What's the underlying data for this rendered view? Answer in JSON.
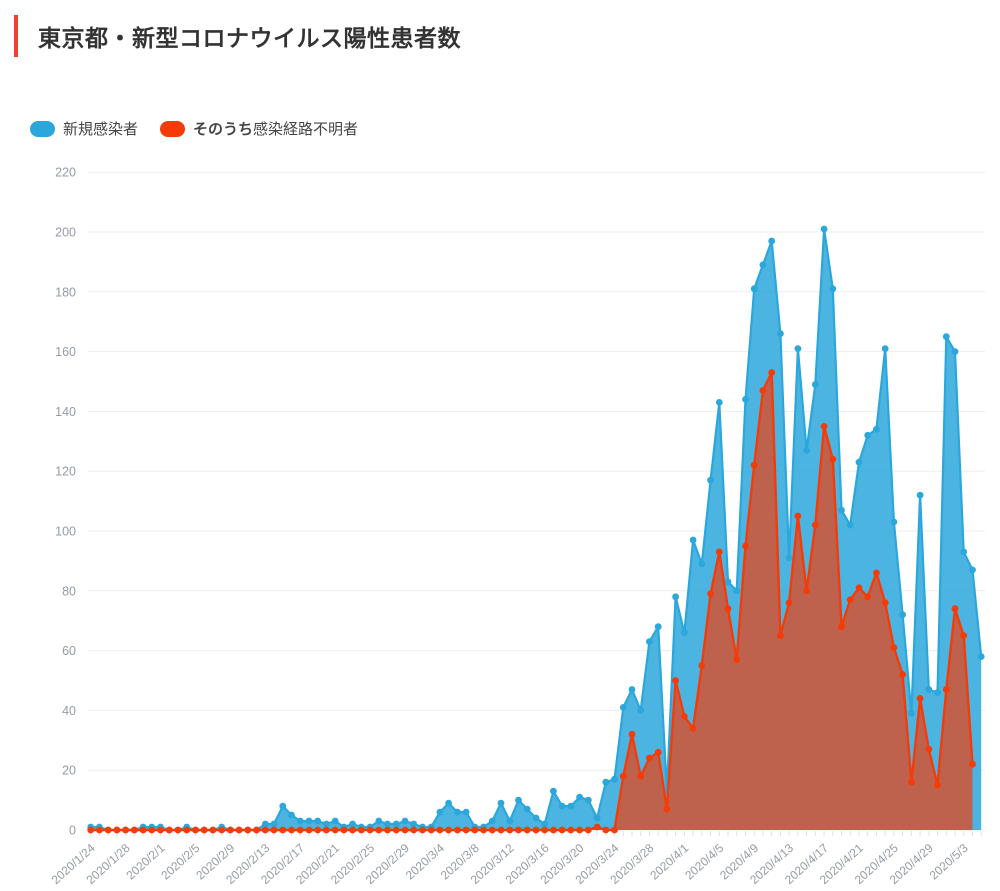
{
  "page": {
    "title": "東京都・新型コロナウイルス陽性患者数"
  },
  "legend": {
    "series1": {
      "label": "新規感染者",
      "color": "#2BA7DC"
    },
    "series2": {
      "label_bold": "そのうち",
      "label": "感染経路不明者",
      "color": "#F53B08"
    }
  },
  "colors": {
    "accent_bar": "#EF3E36",
    "grid": "#EDEDED",
    "tick_text": "#959BA6",
    "tick_mark": "#E0E0E0"
  },
  "chart_data": {
    "type": "area",
    "title": "東京都・新型コロナウイルス陽性患者数",
    "x": [
      "2020/1/24",
      "2020/1/25",
      "2020/1/26",
      "2020/1/27",
      "2020/1/28",
      "2020/1/29",
      "2020/1/30",
      "2020/1/31",
      "2020/2/1",
      "2020/2/2",
      "2020/2/3",
      "2020/2/4",
      "2020/2/5",
      "2020/2/6",
      "2020/2/7",
      "2020/2/8",
      "2020/2/9",
      "2020/2/10",
      "2020/2/11",
      "2020/2/12",
      "2020/2/13",
      "2020/2/14",
      "2020/2/15",
      "2020/2/16",
      "2020/2/17",
      "2020/2/18",
      "2020/2/19",
      "2020/2/20",
      "2020/2/21",
      "2020/2/22",
      "2020/2/23",
      "2020/2/24",
      "2020/2/25",
      "2020/2/26",
      "2020/2/27",
      "2020/2/28",
      "2020/2/29",
      "2020/3/1",
      "2020/3/2",
      "2020/3/3",
      "2020/3/4",
      "2020/3/5",
      "2020/3/6",
      "2020/3/7",
      "2020/3/8",
      "2020/3/9",
      "2020/3/10",
      "2020/3/11",
      "2020/3/12",
      "2020/3/13",
      "2020/3/14",
      "2020/3/15",
      "2020/3/16",
      "2020/3/17",
      "2020/3/18",
      "2020/3/19",
      "2020/3/20",
      "2020/3/21",
      "2020/3/22",
      "2020/3/23",
      "2020/3/24",
      "2020/3/25",
      "2020/3/26",
      "2020/3/27",
      "2020/3/28",
      "2020/3/29",
      "2020/3/30",
      "2020/3/31",
      "2020/4/1",
      "2020/4/2",
      "2020/4/3",
      "2020/4/4",
      "2020/4/5",
      "2020/4/6",
      "2020/4/7",
      "2020/4/8",
      "2020/4/9",
      "2020/4/10",
      "2020/4/11",
      "2020/4/12",
      "2020/4/13",
      "2020/4/14",
      "2020/4/15",
      "2020/4/16",
      "2020/4/17",
      "2020/4/18",
      "2020/4/19",
      "2020/4/20",
      "2020/4/21",
      "2020/4/22",
      "2020/4/23",
      "2020/4/24",
      "2020/4/25",
      "2020/4/26",
      "2020/4/27",
      "2020/4/28",
      "2020/4/29",
      "2020/4/30",
      "2020/5/1",
      "2020/5/2",
      "2020/5/3",
      "2020/5/4",
      "2020/5/5"
    ],
    "x_tick_every": 4,
    "ylim": [
      0,
      220
    ],
    "y_tick_step": 20,
    "grid": true,
    "legend_position": "top-left",
    "series": [
      {
        "name": "新規感染者",
        "color": "#2BA7DC",
        "fill_opacity": 0.85,
        "values": [
          1,
          1,
          0,
          0,
          0,
          0,
          1,
          1,
          1,
          0,
          0,
          1,
          0,
          0,
          0,
          1,
          0,
          0,
          0,
          0,
          2,
          2,
          8,
          5,
          3,
          3,
          3,
          2,
          3,
          1,
          2,
          1,
          1,
          3,
          2,
          2,
          3,
          2,
          1,
          1,
          6,
          9,
          6,
          6,
          1,
          1,
          3,
          9,
          3,
          10,
          7,
          4,
          2,
          13,
          8,
          8,
          11,
          10,
          4,
          16,
          17,
          41,
          47,
          40,
          63,
          68,
          13,
          78,
          66,
          97,
          89,
          117,
          143,
          83,
          80,
          144,
          181,
          189,
          197,
          166,
          91,
          161,
          127,
          149,
          201,
          181,
          107,
          102,
          123,
          132,
          134,
          161,
          103,
          72,
          39,
          112,
          47,
          46,
          165,
          160,
          93,
          87,
          58
        ]
      },
      {
        "name": "そのうち感染経路不明者",
        "color": "#F53B08",
        "fill_opacity": 0.68,
        "values": [
          0,
          0,
          0,
          0,
          0,
          0,
          0,
          0,
          0,
          0,
          0,
          0,
          0,
          0,
          0,
          0,
          0,
          0,
          0,
          0,
          0,
          0,
          0,
          0,
          0,
          0,
          0,
          0,
          0,
          0,
          0,
          0,
          0,
          0,
          0,
          0,
          0,
          0,
          0,
          0,
          0,
          0,
          0,
          0,
          0,
          0,
          0,
          0,
          0,
          0,
          0,
          0,
          0,
          0,
          0,
          0,
          0,
          0,
          1,
          0,
          0,
          18,
          32,
          18,
          24,
          26,
          7,
          50,
          38,
          34,
          55,
          79,
          93,
          74,
          57,
          95,
          122,
          147,
          153,
          65,
          76,
          105,
          80,
          102,
          135,
          124,
          68,
          77,
          81,
          78,
          86,
          76,
          61,
          52,
          16,
          44,
          27,
          15,
          47,
          74,
          65,
          22,
          null
        ]
      }
    ]
  }
}
